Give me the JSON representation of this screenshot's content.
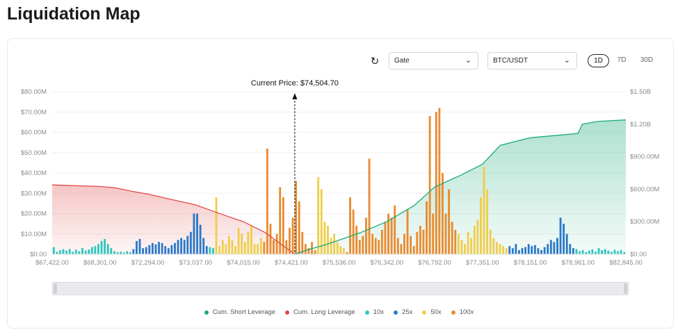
{
  "page": {
    "title": "Liquidation Map"
  },
  "controls": {
    "exchange": "Gate",
    "pair": "BTC/USDT",
    "ranges": [
      "1D",
      "7D",
      "30D"
    ],
    "active_range": "1D"
  },
  "chart_data": {
    "type": "bar",
    "current_price_label": "Current Price: $74,504.70",
    "current_price": 74504.7,
    "xlim": [
      67422,
      82845
    ],
    "x_tick_labels": [
      "$67,422.00",
      "$68,301.00",
      "$72,294.00",
      "$73,037.00",
      "$74,015.00",
      "$74,421.00",
      "$75,536.00",
      "$76,342.00",
      "$76,792.00",
      "$77,351.00",
      "$78,151.00",
      "$78,961.00",
      "$82,845.00"
    ],
    "y_left_ticks": [
      "$0.00",
      "$10.00M",
      "$20.00M",
      "$30.00M",
      "$40.00M",
      "$50.00M",
      "$60.00M",
      "$70.00M",
      "$80.00M"
    ],
    "y_left_max": 80,
    "y_right_ticks": [
      "$0.00",
      "$300.00M",
      "$600.00M",
      "$900.00M",
      "$1.20B",
      "$1.50B"
    ],
    "y_right_max": 1500,
    "colors": {
      "short": "#1aaa76",
      "long": "#e04a4a",
      "x10": "#2ec7c0",
      "x25": "#2a78c8",
      "x50": "#efcd4a",
      "x100": "#e88b2e"
    },
    "legend": [
      {
        "name": "Cum. Short Leverage",
        "key": "short"
      },
      {
        "name": "Cum. Long Leverage",
        "key": "long"
      },
      {
        "name": "10x",
        "key": "x10"
      },
      {
        "name": "25x",
        "key": "x25"
      },
      {
        "name": "50x",
        "key": "x50"
      },
      {
        "name": "100x",
        "key": "x100"
      }
    ],
    "bar_groups": [
      {
        "lev": "x10",
        "start": 0,
        "vals": [
          3.5,
          1.2,
          2,
          2.5,
          1.8,
          2.6,
          1.2,
          2.2,
          1.5,
          3.1,
          1.8,
          2.3,
          3.5,
          4,
          5,
          6.5,
          7.5,
          5,
          3,
          1.5,
          1,
          1.2,
          0.8,
          1.5,
          1
        ]
      },
      {
        "lev": "x25",
        "start": 25,
        "vals": [
          2.5,
          6.5,
          7.5,
          3,
          3.5,
          4.5,
          5.5,
          4.8,
          6,
          5.5,
          4,
          3,
          4.5,
          5.5,
          7,
          8,
          7,
          9,
          11,
          20,
          20,
          14.5,
          8,
          4
        ]
      },
      {
        "lev": "x10",
        "start": 49,
        "vals": [
          3.5,
          3
        ]
      },
      {
        "lev": "x50",
        "start": 51,
        "vals": [
          28,
          4,
          7,
          5,
          9,
          7,
          4,
          13,
          10,
          6,
          11,
          14,
          5,
          5,
          8
        ]
      },
      {
        "lev": "x100",
        "start": 66,
        "vals": [
          6,
          52,
          15,
          7,
          10,
          33,
          28,
          7,
          13,
          18,
          36,
          26,
          11,
          5,
          3,
          6,
          2
        ]
      },
      {
        "lev": "x50",
        "start": 83,
        "vals": [
          38,
          32,
          16,
          14,
          8,
          10,
          6,
          4,
          3
        ]
      },
      {
        "lev": "x100",
        "start": 92,
        "vals": [
          1,
          28,
          22,
          14,
          7,
          9,
          18,
          47,
          10,
          8,
          7,
          12,
          16,
          20,
          18,
          24,
          8,
          5,
          10,
          22,
          9,
          4,
          11,
          14,
          12,
          26,
          68,
          20,
          70,
          72,
          40,
          20,
          32,
          16,
          12
        ]
      },
      {
        "lev": "x50",
        "start": 127,
        "vals": [
          10,
          7,
          5,
          11,
          8,
          14,
          17,
          28,
          43,
          32,
          12,
          8,
          6,
          5,
          4,
          3
        ]
      },
      {
        "lev": "x25",
        "start": 143,
        "vals": [
          4,
          3,
          5,
          2,
          3,
          3.5,
          5,
          4,
          4.5,
          3,
          2,
          3.5,
          5,
          7,
          6,
          8,
          18,
          15,
          10,
          5,
          3
        ]
      },
      {
        "lev": "x10",
        "start": 164,
        "vals": [
          2.5,
          1.5,
          2,
          1,
          1.8,
          2.4,
          1.3,
          3,
          2,
          2.5,
          1.8,
          1.2,
          2.2,
          1.5,
          2,
          1
        ]
      }
    ],
    "cum_long": [
      [
        67422,
        640
      ],
      [
        68301,
        625
      ],
      [
        69500,
        615
      ],
      [
        71000,
        580
      ],
      [
        72294,
        555
      ],
      [
        72700,
        500
      ],
      [
        73037,
        455
      ],
      [
        73500,
        380
      ],
      [
        74015,
        300
      ],
      [
        74200,
        200
      ],
      [
        74350,
        80
      ],
      [
        74421,
        25
      ],
      [
        74504.7,
        0
      ]
    ],
    "cum_short": [
      [
        74504.7,
        0
      ],
      [
        74800,
        40
      ],
      [
        75200,
        85
      ],
      [
        75536,
        130
      ],
      [
        75900,
        200
      ],
      [
        76342,
        300
      ],
      [
        76600,
        450
      ],
      [
        76792,
        620
      ],
      [
        77100,
        730
      ],
      [
        77351,
        830
      ],
      [
        77650,
        1005
      ],
      [
        78151,
        1075
      ],
      [
        78961,
        1115
      ],
      [
        79300,
        1200
      ],
      [
        80500,
        1225
      ],
      [
        82845,
        1240
      ]
    ]
  }
}
